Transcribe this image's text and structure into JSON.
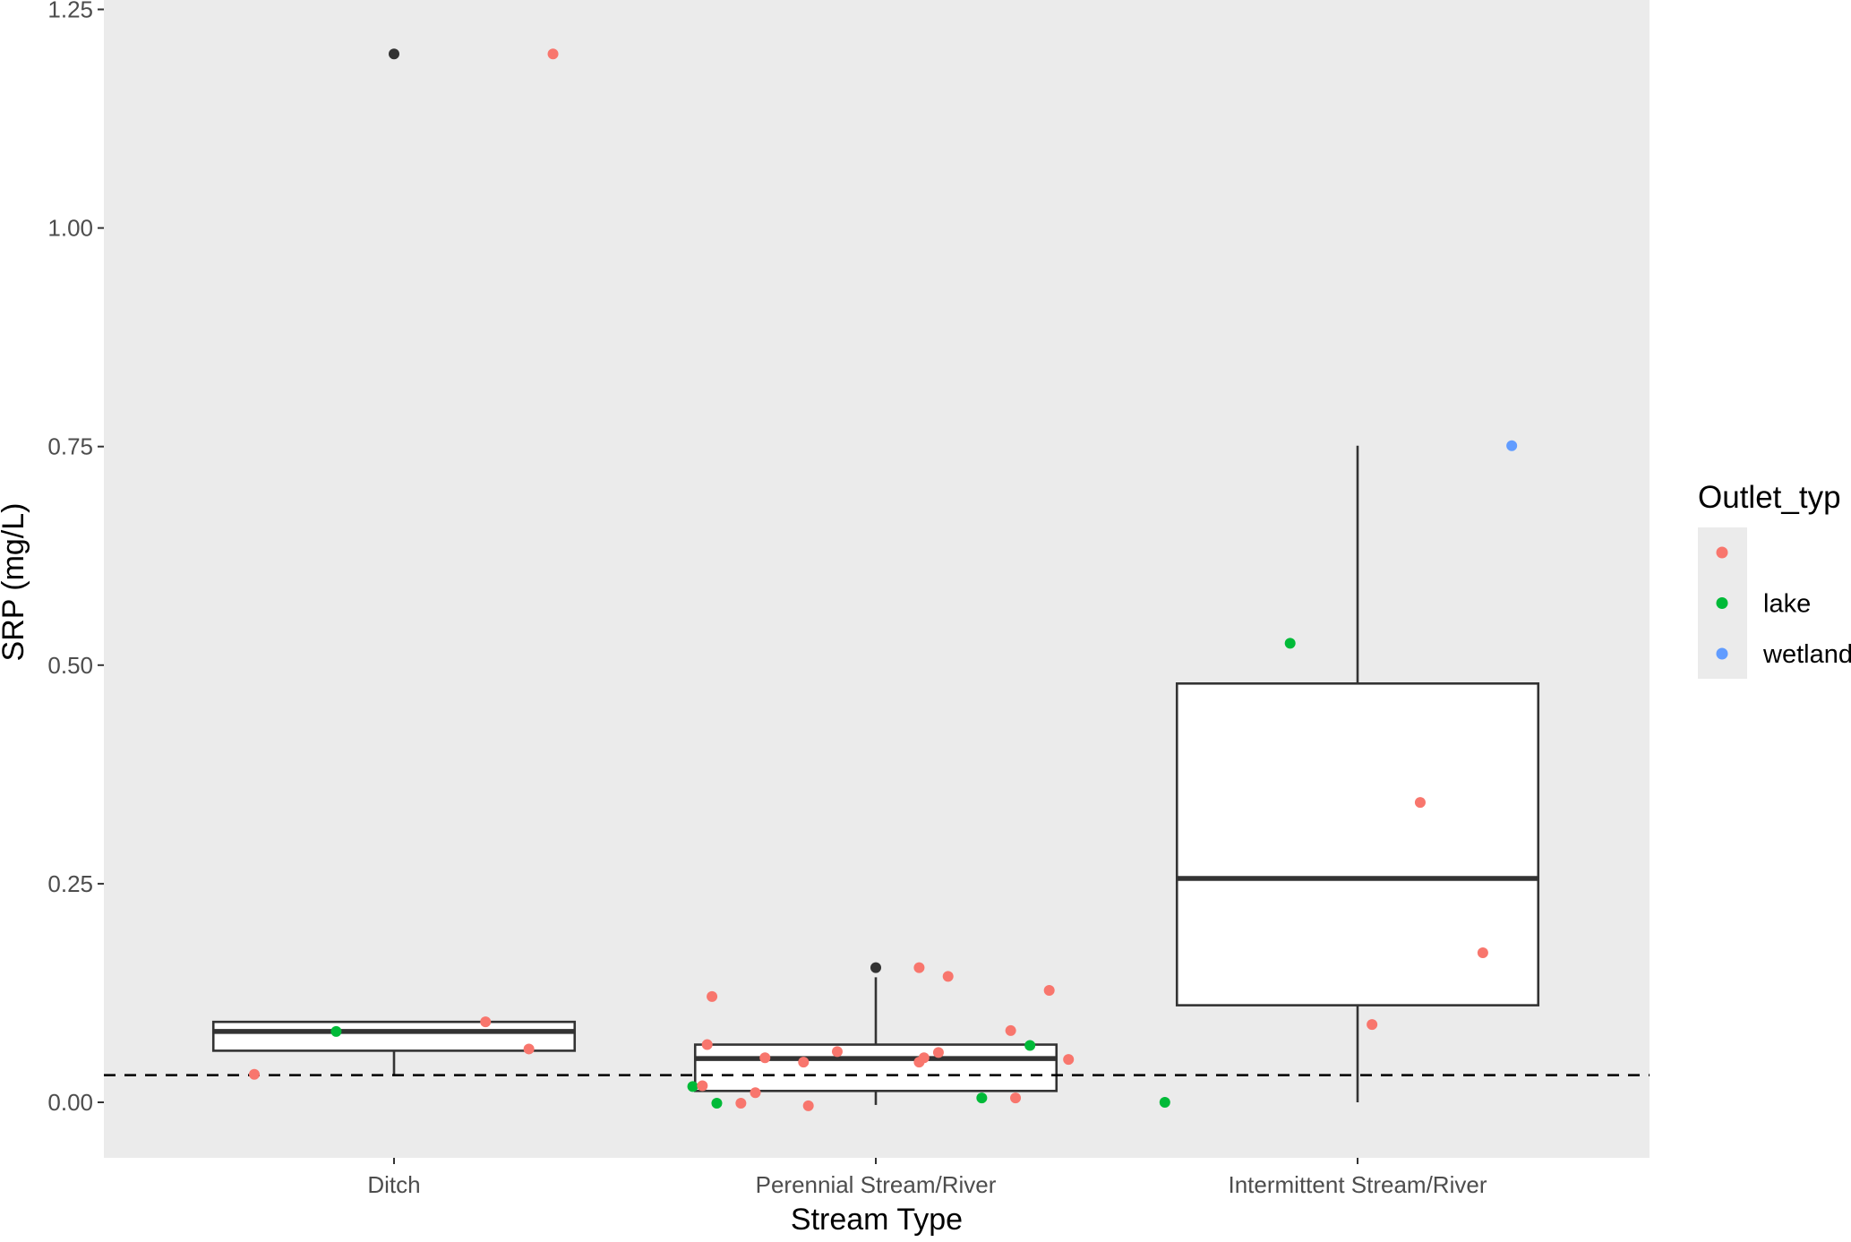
{
  "chart_data": {
    "type": "box",
    "xlabel": "Stream Type",
    "ylabel": "SRP (mg/L)",
    "categories": [
      "Ditch",
      "Perennial Stream/River",
      "Intermittent Stream/River"
    ],
    "ylim": [
      -0.065,
      1.26
    ],
    "yticks": [
      0,
      0.25,
      0.5,
      0.75,
      1.0,
      1.25
    ],
    "ytick_labels": [
      "0.00",
      "0.25",
      "0.50",
      "0.75",
      "1.00",
      "1.25"
    ],
    "grid": false,
    "panel_background": "#EBEBEB",
    "reference_line": {
      "y": 0.031,
      "style": "dashed"
    },
    "boxes": [
      {
        "category": "Ditch",
        "whisker_low": 0.031,
        "q1": 0.059,
        "median": 0.081,
        "q3": 0.092,
        "whisker_high": 0.092,
        "outliers": [
          1.199
        ]
      },
      {
        "category": "Perennial Stream/River",
        "whisker_low": -0.003,
        "q1": 0.013,
        "median": 0.05,
        "q3": 0.066,
        "whisker_high": 0.143,
        "outliers": [
          0.154
        ]
      },
      {
        "category": "Intermittent Stream/River",
        "whisker_low": 0.0,
        "q1": 0.111,
        "median": 0.256,
        "q3": 0.479,
        "whisker_high": 0.751,
        "outliers": []
      }
    ],
    "legend": {
      "title": "Outlet_typ",
      "placement": "right",
      "entries": [
        {
          "label": "",
          "color": "#F8766D"
        },
        {
          "label": "lake",
          "color": "#00BA38"
        },
        {
          "label": "wetland",
          "color": "#619CFF"
        }
      ]
    },
    "points": [
      {
        "x": 0.71,
        "y": 0.032,
        "group": ""
      },
      {
        "x": 0.88,
        "y": 0.081,
        "group": "lake"
      },
      {
        "x": 1.19,
        "y": 0.092,
        "group": ""
      },
      {
        "x": 1.28,
        "y": 0.061,
        "group": ""
      },
      {
        "x": 1.33,
        "y": 1.199,
        "group": ""
      },
      {
        "x": 1.66,
        "y": 0.121,
        "group": ""
      },
      {
        "x": 1.65,
        "y": 0.066,
        "group": ""
      },
      {
        "x": 1.62,
        "y": 0.018,
        "group": "lake"
      },
      {
        "x": 1.64,
        "y": 0.019,
        "group": ""
      },
      {
        "x": 1.67,
        "y": -0.001,
        "group": "lake"
      },
      {
        "x": 1.72,
        "y": -0.001,
        "group": ""
      },
      {
        "x": 1.75,
        "y": 0.011,
        "group": ""
      },
      {
        "x": 1.77,
        "y": 0.051,
        "group": ""
      },
      {
        "x": 1.85,
        "y": 0.046,
        "group": ""
      },
      {
        "x": 1.86,
        "y": -0.004,
        "group": ""
      },
      {
        "x": 1.92,
        "y": 0.058,
        "group": ""
      },
      {
        "x": 2.09,
        "y": 0.154,
        "group": ""
      },
      {
        "x": 2.15,
        "y": 0.144,
        "group": ""
      },
      {
        "x": 2.09,
        "y": 0.046,
        "group": ""
      },
      {
        "x": 2.1,
        "y": 0.051,
        "group": ""
      },
      {
        "x": 2.13,
        "y": 0.057,
        "group": ""
      },
      {
        "x": 2.22,
        "y": 0.005,
        "group": "lake"
      },
      {
        "x": 2.28,
        "y": 0.082,
        "group": ""
      },
      {
        "x": 2.29,
        "y": 0.005,
        "group": ""
      },
      {
        "x": 2.32,
        "y": 0.065,
        "group": "lake"
      },
      {
        "x": 2.36,
        "y": 0.128,
        "group": ""
      },
      {
        "x": 2.4,
        "y": 0.049,
        "group": ""
      },
      {
        "x": 2.86,
        "y": 0.525,
        "group": "lake"
      },
      {
        "x": 2.6,
        "y": 0.0,
        "group": "lake"
      },
      {
        "x": 3.13,
        "y": 0.343,
        "group": ""
      },
      {
        "x": 3.26,
        "y": 0.171,
        "group": ""
      },
      {
        "x": 3.03,
        "y": 0.089,
        "group": ""
      },
      {
        "x": 3.32,
        "y": 0.751,
        "group": "wetland"
      }
    ],
    "outlier_color": "#333333",
    "box_width": 0.75
  }
}
